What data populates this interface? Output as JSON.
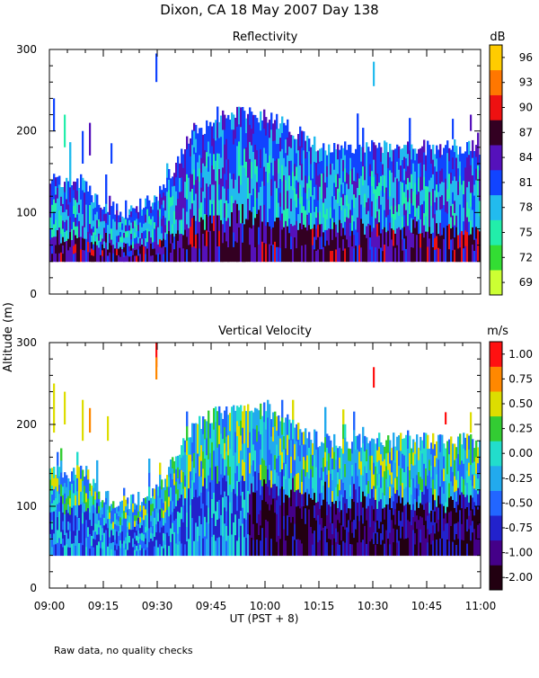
{
  "title": "Dixon, CA 18 May 2007  Day 138",
  "footnote": "Raw data, no quality checks",
  "y_axis_label": "Altitude (m)",
  "x_axis_label": "UT  (PST + 8)",
  "chart_data": [
    {
      "type": "heatmap",
      "title": "Reflectivity",
      "xlabel": "UT  (PST + 8)",
      "ylabel": "Altitude (m)",
      "x_ticks": [
        "09:00",
        "09:15",
        "09:30",
        "09:45",
        "10:00",
        "10:15",
        "10:30",
        "10:45",
        "11:00"
      ],
      "xlim_minutes": [
        0,
        120
      ],
      "ylim": [
        0,
        300
      ],
      "y_ticks": [
        0,
        100,
        200,
        300
      ],
      "colorbar": {
        "unit": "dB",
        "ticks": [
          "69",
          "72",
          "75",
          "78",
          "81",
          "84",
          "87",
          "90",
          "93",
          "96"
        ],
        "colors": [
          "#ccff33",
          "#33dd33",
          "#22eeaa",
          "#22bbee",
          "#1144ff",
          "#5511bb",
          "#330022",
          "#ee1111",
          "#ff7700",
          "#ffcc00"
        ]
      },
      "echo_base_m": 40,
      "echo_top_profile": [
        {
          "minute": 0,
          "top_m": 140
        },
        {
          "minute": 10,
          "top_m": 140
        },
        {
          "minute": 12,
          "top_m": 120
        },
        {
          "minute": 20,
          "top_m": 100
        },
        {
          "minute": 30,
          "top_m": 120
        },
        {
          "minute": 35,
          "top_m": 160
        },
        {
          "minute": 40,
          "top_m": 200
        },
        {
          "minute": 45,
          "top_m": 210
        },
        {
          "minute": 50,
          "top_m": 220
        },
        {
          "minute": 60,
          "top_m": 220
        },
        {
          "minute": 68,
          "top_m": 200
        },
        {
          "minute": 75,
          "top_m": 180
        },
        {
          "minute": 90,
          "top_m": 180
        },
        {
          "minute": 100,
          "top_m": 180
        },
        {
          "minute": 110,
          "top_m": 180
        },
        {
          "minute": 120,
          "top_m": 180
        }
      ]
    },
    {
      "type": "heatmap",
      "title": "Vertical Velocity",
      "xlabel": "UT  (PST + 8)",
      "ylabel": "Altitude (m)",
      "x_ticks": [
        "09:00",
        "09:15",
        "09:30",
        "09:45",
        "10:00",
        "10:15",
        "10:30",
        "10:45",
        "11:00"
      ],
      "xlim_minutes": [
        0,
        120
      ],
      "ylim": [
        0,
        300
      ],
      "y_ticks": [
        0,
        100,
        200,
        300
      ],
      "colorbar": {
        "unit": "m/s",
        "ticks": [
          "-2.00",
          "-1.00",
          "-0.75",
          "-0.50",
          "-0.25",
          "0.00",
          "0.25",
          "0.50",
          "0.75",
          "1.00"
        ],
        "colors": [
          "#220011",
          "#440088",
          "#2222cc",
          "#2266ff",
          "#22aaee",
          "#22ddcc",
          "#33cc33",
          "#dddd00",
          "#ff8800",
          "#ff1111"
        ]
      },
      "echo_base_m": 40,
      "echo_top_profile": [
        {
          "minute": 0,
          "top_m": 140
        },
        {
          "minute": 10,
          "top_m": 140
        },
        {
          "minute": 12,
          "top_m": 120
        },
        {
          "minute": 20,
          "top_m": 100
        },
        {
          "minute": 30,
          "top_m": 120
        },
        {
          "minute": 35,
          "top_m": 160
        },
        {
          "minute": 40,
          "top_m": 200
        },
        {
          "minute": 45,
          "top_m": 210
        },
        {
          "minute": 50,
          "top_m": 220
        },
        {
          "minute": 60,
          "top_m": 220
        },
        {
          "minute": 68,
          "top_m": 200
        },
        {
          "minute": 75,
          "top_m": 180
        },
        {
          "minute": 90,
          "top_m": 180
        },
        {
          "minute": 100,
          "top_m": 180
        },
        {
          "minute": 110,
          "top_m": 180
        },
        {
          "minute": 120,
          "top_m": 180
        }
      ]
    }
  ]
}
